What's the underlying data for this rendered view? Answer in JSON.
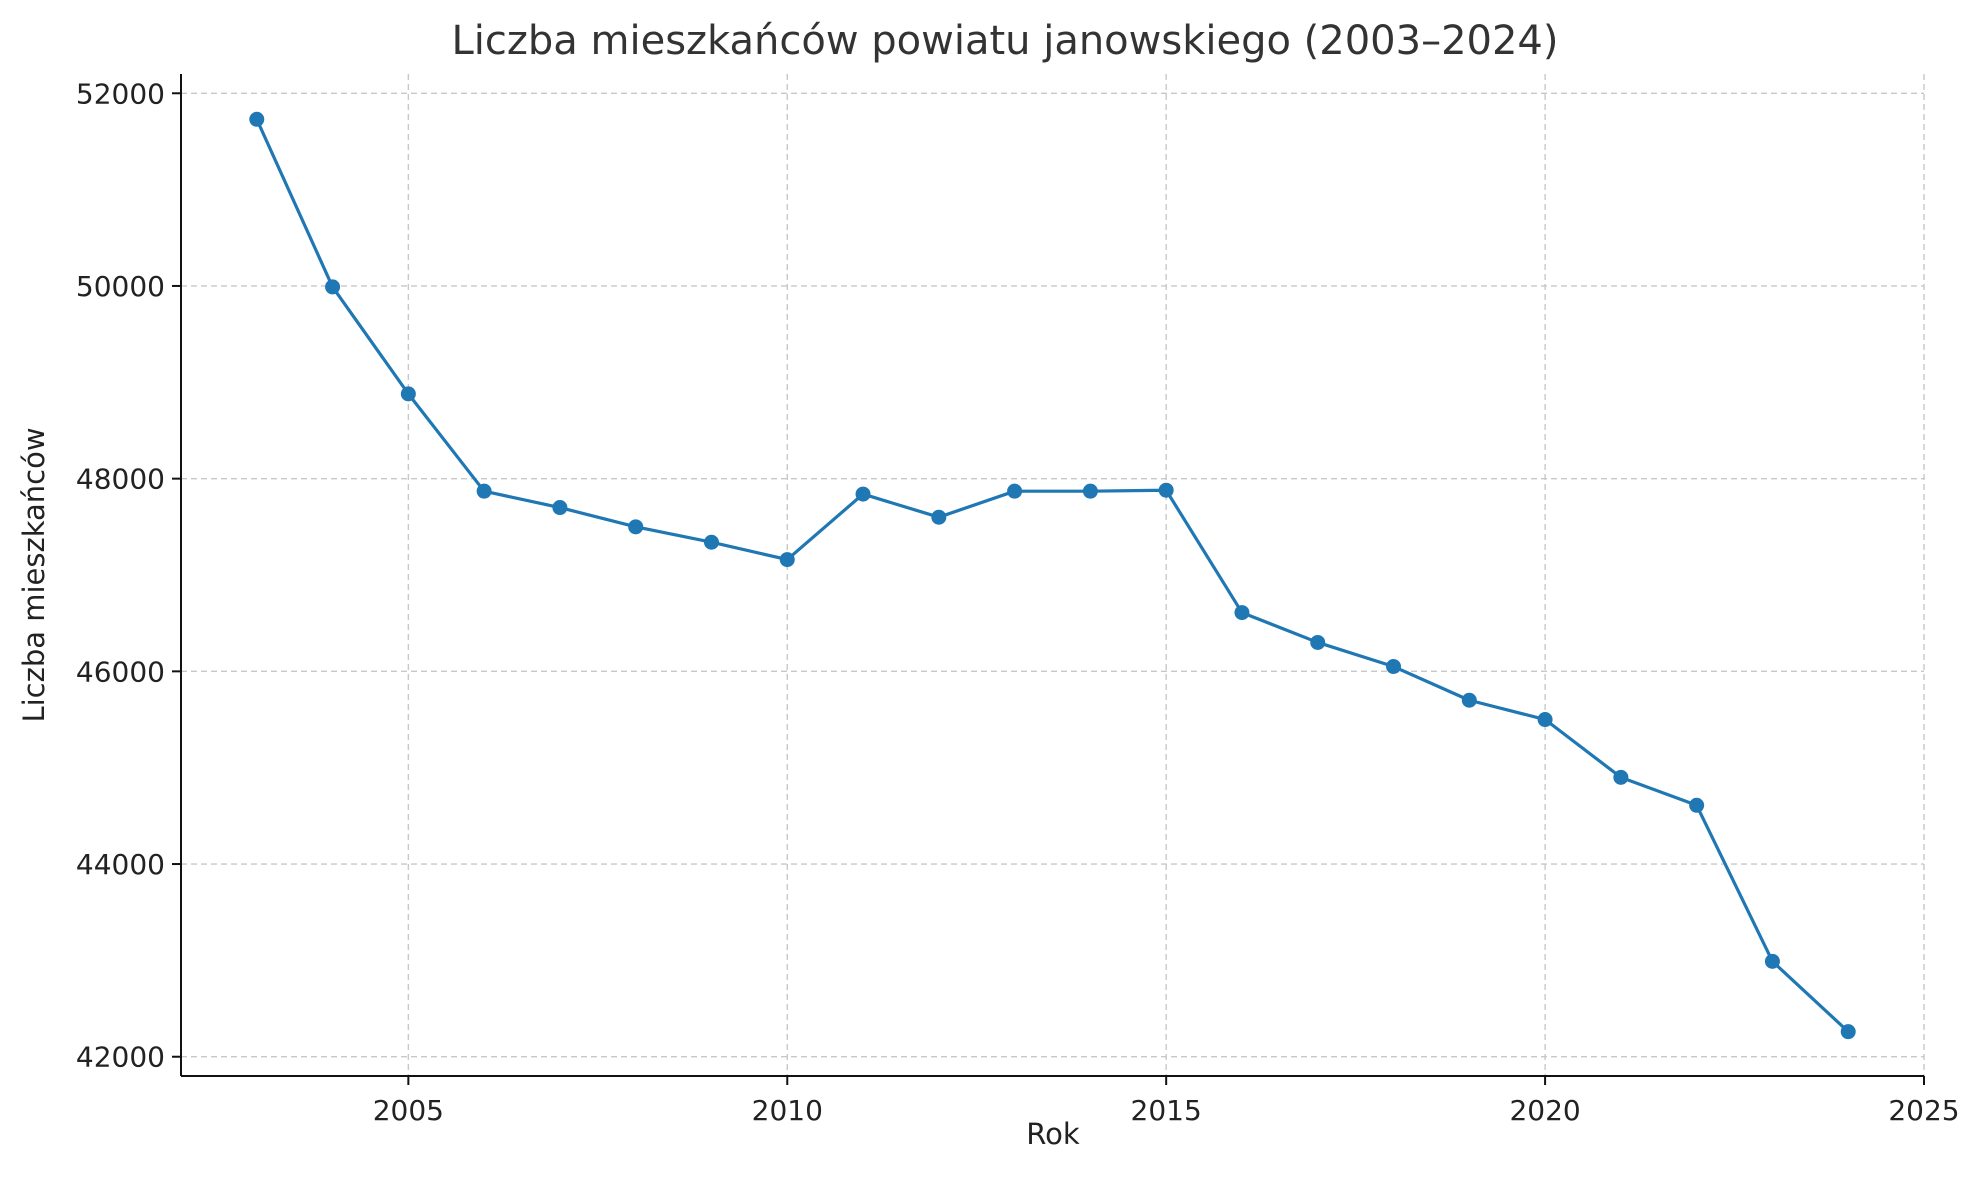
{
  "chart_data": {
    "type": "line",
    "title": "Liczba mieszkańców powiatu janowskiego (2003–2024)",
    "xlabel": "Rok",
    "ylabel": "Liczba mieszkańców",
    "xlim": [
      2002,
      2025
    ],
    "ylim": [
      41800,
      52200
    ],
    "xticks": [
      2005,
      2010,
      2015,
      2020,
      2025
    ],
    "yticks": [
      42000,
      44000,
      46000,
      48000,
      50000,
      52000
    ],
    "grid": true,
    "legend": "none",
    "series": [
      {
        "color": "#1f77b4",
        "marker": "circle",
        "x": [
          2003,
          2004,
          2005,
          2006,
          2007,
          2008,
          2009,
          2010,
          2011,
          2012,
          2013,
          2014,
          2015,
          2016,
          2017,
          2018,
          2019,
          2020,
          2021,
          2022,
          2023,
          2024
        ],
        "y": [
          51730,
          49990,
          48880,
          47870,
          47700,
          47500,
          47340,
          47160,
          47840,
          47600,
          47870,
          47870,
          47880,
          46610,
          46300,
          46050,
          45700,
          45500,
          44900,
          44610,
          42990,
          42260
        ]
      }
    ]
  }
}
